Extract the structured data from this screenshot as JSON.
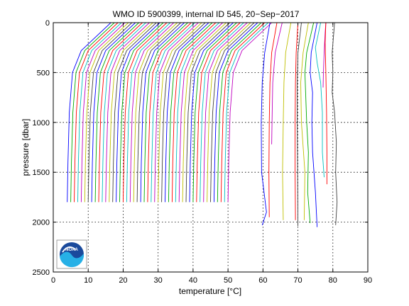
{
  "chart_data": {
    "type": "line",
    "title": "WMO ID 5900399, internal ID 545, 20−Sep−2017",
    "xlabel": "temperature [°C]",
    "ylabel": "pressure [dbar]",
    "xlim": [
      0,
      90
    ],
    "ylim": [
      0,
      2500
    ],
    "y_reversed": true,
    "grid": true,
    "x_ticks": [
      "0",
      "10",
      "20",
      "30",
      "40",
      "50",
      "60",
      "70",
      "80",
      "90"
    ],
    "y_ticks": [
      "0",
      "500",
      "1000",
      "1500",
      "2000",
      "2500"
    ],
    "logo": "NOAA",
    "profile_style": "waterfall, each profile offset +1 °C from previous",
    "profile_colors": [
      "#0000ff",
      "#00aa00",
      "#ff0000",
      "#00bfbf",
      "#bf00bf",
      "#bfbf00",
      "#404040"
    ],
    "series": [
      {
        "color": "#0000ff",
        "x": [
          16.5,
          8.0,
          5.5,
          4.6,
          4.2,
          4.0
        ],
        "y": [
          0,
          280,
          500,
          900,
          1400,
          1800
        ]
      },
      {
        "color": "#00aa00",
        "x": [
          17.5,
          9.0,
          6.5,
          5.6,
          5.2,
          5.0
        ],
        "y": [
          0,
          280,
          500,
          900,
          1400,
          1800
        ]
      },
      {
        "color": "#ff0000",
        "x": [
          18.5,
          10.0,
          7.5,
          6.6,
          6.2,
          6.0
        ],
        "y": [
          0,
          280,
          500,
          900,
          1400,
          1800
        ]
      },
      {
        "color": "#00bfbf",
        "x": [
          19.5,
          11.0,
          8.5,
          7.6,
          7.2,
          7.0
        ],
        "y": [
          0,
          280,
          500,
          900,
          1400,
          1800
        ]
      },
      {
        "color": "#bf00bf",
        "x": [
          20.5,
          12.0,
          9.5,
          8.6,
          8.2,
          8.0
        ],
        "y": [
          0,
          280,
          500,
          900,
          1400,
          1800
        ]
      },
      {
        "color": "#bfbf00",
        "x": [
          21.5,
          13.0,
          10.5,
          9.6,
          9.2,
          9.0
        ],
        "y": [
          0,
          280,
          500,
          900,
          1400,
          1800
        ]
      },
      {
        "color": "#404040",
        "x": [
          22.5,
          14.0,
          11.5,
          10.6,
          10.2,
          10.0
        ],
        "y": [
          0,
          280,
          500,
          900,
          1400,
          1800
        ]
      },
      {
        "color": "#0000ff",
        "x": [
          23.5,
          15.0,
          12.5,
          11.6,
          11.2,
          11.0
        ],
        "y": [
          0,
          280,
          500,
          900,
          1400,
          1800
        ]
      },
      {
        "color": "#00aa00",
        "x": [
          24.5,
          16.0,
          13.5,
          12.6,
          12.2,
          12.0
        ],
        "y": [
          0,
          280,
          500,
          900,
          1400,
          1800
        ]
      },
      {
        "color": "#ff0000",
        "x": [
          25.5,
          17.0,
          14.5,
          13.6,
          13.2,
          13.0
        ],
        "y": [
          0,
          280,
          500,
          900,
          1400,
          1800
        ]
      },
      {
        "color": "#00bfbf",
        "x": [
          26.5,
          18.0,
          15.5,
          14.6,
          14.2,
          14.0
        ],
        "y": [
          0,
          280,
          500,
          900,
          1400,
          1800
        ]
      },
      {
        "color": "#bf00bf",
        "x": [
          27.5,
          19.0,
          16.5,
          15.6,
          15.2,
          15.0
        ],
        "y": [
          0,
          280,
          500,
          900,
          1400,
          1800
        ]
      },
      {
        "color": "#bfbf00",
        "x": [
          28.5,
          20.0,
          17.5,
          16.6,
          16.2,
          16.0
        ],
        "y": [
          0,
          280,
          500,
          900,
          1400,
          1800
        ]
      },
      {
        "color": "#404040",
        "x": [
          29.5,
          21.0,
          18.5,
          17.6,
          17.2,
          17.0
        ],
        "y": [
          0,
          280,
          500,
          900,
          1400,
          1800
        ]
      },
      {
        "color": "#0000ff",
        "x": [
          30.5,
          22.0,
          19.5,
          18.6,
          18.2,
          18.0
        ],
        "y": [
          0,
          280,
          500,
          900,
          1400,
          1800
        ]
      },
      {
        "color": "#00aa00",
        "x": [
          31.5,
          23.0,
          20.5,
          19.6,
          19.2,
          19.0
        ],
        "y": [
          0,
          280,
          500,
          900,
          1400,
          1800
        ]
      },
      {
        "color": "#ff0000",
        "x": [
          32.5,
          24.0,
          21.5,
          20.6,
          20.2,
          20.0
        ],
        "y": [
          0,
          280,
          500,
          900,
          1400,
          1800
        ]
      },
      {
        "color": "#00bfbf",
        "x": [
          33.5,
          25.0,
          22.5,
          21.6,
          21.2,
          21.0
        ],
        "y": [
          0,
          280,
          500,
          900,
          1400,
          1800
        ]
      },
      {
        "color": "#bf00bf",
        "x": [
          34.5,
          26.0,
          23.5,
          22.6,
          22.2,
          22.0
        ],
        "y": [
          0,
          280,
          500,
          900,
          1400,
          1800
        ]
      },
      {
        "color": "#bfbf00",
        "x": [
          35.5,
          27.0,
          24.5,
          23.6,
          23.2,
          23.0
        ],
        "y": [
          0,
          280,
          500,
          900,
          1400,
          1800
        ]
      },
      {
        "color": "#404040",
        "x": [
          36.5,
          28.0,
          25.5,
          24.6,
          24.2,
          24.0
        ],
        "y": [
          0,
          280,
          500,
          900,
          1400,
          1800
        ]
      },
      {
        "color": "#0000ff",
        "x": [
          37.5,
          29.0,
          26.5,
          25.6,
          25.2,
          25.0
        ],
        "y": [
          0,
          280,
          500,
          900,
          1400,
          1800
        ]
      },
      {
        "color": "#00aa00",
        "x": [
          38.5,
          30.0,
          27.5,
          26.6,
          26.2,
          26.0
        ],
        "y": [
          0,
          280,
          500,
          900,
          1400,
          1800
        ]
      },
      {
        "color": "#ff0000",
        "x": [
          39.5,
          31.0,
          28.5,
          27.6,
          27.2,
          27.0
        ],
        "y": [
          0,
          280,
          500,
          900,
          1400,
          1800
        ]
      },
      {
        "color": "#00bfbf",
        "x": [
          40.5,
          32.0,
          29.5,
          28.6,
          28.2,
          28.0
        ],
        "y": [
          0,
          280,
          500,
          900,
          1400,
          1800
        ]
      },
      {
        "color": "#bf00bf",
        "x": [
          41.5,
          33.0,
          30.5,
          29.6,
          29.2,
          29.0
        ],
        "y": [
          0,
          280,
          500,
          900,
          1400,
          1800
        ]
      },
      {
        "color": "#bfbf00",
        "x": [
          42.5,
          34.0,
          31.5,
          30.6,
          30.2,
          30.0
        ],
        "y": [
          0,
          280,
          500,
          900,
          1400,
          1800
        ]
      },
      {
        "color": "#404040",
        "x": [
          43.5,
          35.0,
          32.5,
          31.6,
          31.2,
          31.0
        ],
        "y": [
          0,
          280,
          500,
          900,
          1400,
          1800
        ]
      },
      {
        "color": "#0000ff",
        "x": [
          44.5,
          36.0,
          33.5,
          32.6,
          32.2,
          32.0
        ],
        "y": [
          0,
          280,
          500,
          900,
          1400,
          1800
        ]
      },
      {
        "color": "#00aa00",
        "x": [
          45.5,
          37.0,
          34.5,
          33.6,
          33.2,
          33.0
        ],
        "y": [
          0,
          280,
          500,
          900,
          1400,
          1800
        ]
      },
      {
        "color": "#ff0000",
        "x": [
          46.5,
          38.0,
          35.5,
          34.6,
          34.2,
          34.0
        ],
        "y": [
          0,
          280,
          500,
          900,
          1400,
          1800
        ]
      },
      {
        "color": "#00bfbf",
        "x": [
          47.5,
          39.0,
          36.5,
          35.6,
          35.2,
          35.0
        ],
        "y": [
          0,
          280,
          500,
          900,
          1400,
          1800
        ]
      },
      {
        "color": "#bf00bf",
        "x": [
          48.5,
          40.0,
          37.5,
          36.6,
          36.2,
          36.0
        ],
        "y": [
          0,
          280,
          500,
          900,
          1400,
          1800
        ]
      },
      {
        "color": "#bfbf00",
        "x": [
          49.5,
          41.0,
          38.5,
          37.6,
          37.2,
          37.0
        ],
        "y": [
          0,
          280,
          500,
          900,
          1400,
          1800
        ]
      },
      {
        "color": "#404040",
        "x": [
          50.5,
          42.0,
          39.5,
          38.6,
          38.2,
          38.0
        ],
        "y": [
          0,
          280,
          500,
          900,
          1400,
          1800
        ]
      },
      {
        "color": "#0000ff",
        "x": [
          51.5,
          43.0,
          40.5,
          39.6,
          39.2,
          39.0
        ],
        "y": [
          0,
          280,
          500,
          900,
          1400,
          1800
        ]
      },
      {
        "color": "#00aa00",
        "x": [
          52.5,
          44.0,
          41.5,
          40.6,
          40.2,
          40.0
        ],
        "y": [
          0,
          280,
          500,
          900,
          1400,
          1800
        ]
      },
      {
        "color": "#ff0000",
        "x": [
          53.5,
          45.0,
          42.5,
          41.6,
          41.2,
          41.0
        ],
        "y": [
          0,
          280,
          500,
          900,
          1400,
          1800
        ]
      },
      {
        "color": "#00bfbf",
        "x": [
          54.5,
          46.0,
          43.5,
          42.6,
          42.2,
          42.0
        ],
        "y": [
          0,
          280,
          500,
          900,
          1400,
          1800
        ]
      },
      {
        "color": "#bf00bf",
        "x": [
          55.5,
          47.0,
          44.5,
          43.6,
          43.2,
          43.0
        ],
        "y": [
          0,
          280,
          500,
          900,
          1400,
          1800
        ]
      },
      {
        "color": "#bfbf00",
        "x": [
          56.5,
          48.0,
          45.5,
          44.6,
          44.2,
          44.0
        ],
        "y": [
          0,
          280,
          500,
          900,
          1400,
          1800
        ]
      },
      {
        "color": "#404040",
        "x": [
          57.5,
          49.0,
          46.5,
          45.6,
          45.2,
          45.0
        ],
        "y": [
          0,
          280,
          500,
          900,
          1400,
          1800
        ]
      },
      {
        "color": "#0000ff",
        "x": [
          58.5,
          50.0,
          47.5,
          46.6,
          46.2,
          46.0
        ],
        "y": [
          0,
          280,
          500,
          900,
          1400,
          1800
        ]
      },
      {
        "color": "#00aa00",
        "x": [
          59.5,
          51.0,
          48.5,
          47.6,
          47.2,
          47.0
        ],
        "y": [
          0,
          280,
          500,
          900,
          1400,
          1800
        ]
      },
      {
        "color": "#ff0000",
        "x": [
          60.5,
          52.0,
          49.5,
          48.6,
          48.2,
          48.0
        ],
        "y": [
          0,
          280,
          500,
          900,
          1400,
          1800
        ]
      },
      {
        "color": "#00bfbf",
        "x": [
          61.5,
          53.0,
          50.5,
          49.6,
          49.2,
          49.0
        ],
        "y": [
          0,
          280,
          500,
          900,
          1400,
          1800
        ]
      },
      {
        "color": "#bf00bf",
        "x": [
          62.5,
          54.0,
          51.5,
          50.6,
          50.2,
          50.0
        ],
        "y": [
          0,
          280,
          500,
          900,
          1400,
          1800
        ]
      },
      {
        "color": "#0000ff",
        "x": [
          62.0,
          60.5,
          59.8,
          59.5,
          59.6,
          61.0,
          59.8
        ],
        "y": [
          0,
          300,
          600,
          1000,
          1500,
          1900,
          2030
        ]
      },
      {
        "color": "#ff0000",
        "x": [
          64.0,
          62.5,
          62.0,
          61.8,
          61.7,
          61.8
        ],
        "y": [
          0,
          300,
          600,
          1000,
          1500,
          1950
        ]
      },
      {
        "color": "#bf00bf",
        "x": [
          65.5,
          63.5,
          62.8,
          62.6,
          62.5
        ],
        "y": [
          0,
          300,
          600,
          1000,
          1220
        ]
      },
      {
        "color": "#bfbf00",
        "x": [
          68.0,
          66.5,
          66.0,
          65.8,
          65.6,
          65.8
        ],
        "y": [
          0,
          300,
          600,
          1000,
          1500,
          1980
        ]
      },
      {
        "color": "#ff0000",
        "x": [
          70.0,
          69.5,
          69.3,
          69.2,
          69.2,
          69.3
        ],
        "y": [
          0,
          300,
          600,
          1000,
          1500,
          1980
        ]
      },
      {
        "color": "#404040",
        "x": [
          71.0,
          70.0,
          69.8,
          69.8,
          69.9,
          70.0
        ],
        "y": [
          0,
          300,
          600,
          1000,
          1500,
          2040
        ]
      },
      {
        "color": "#bfbf00",
        "x": [
          73.0,
          71.5,
          70.8,
          71.0,
          72.0,
          71.8
        ],
        "y": [
          0,
          300,
          600,
          1000,
          1500,
          1980
        ]
      },
      {
        "color": "#00aa00",
        "x": [
          74.5,
          72.5,
          72.0,
          72.2,
          72.5,
          73.0,
          72.8,
          73.5
        ],
        "y": [
          0,
          300,
          500,
          700,
          1000,
          1300,
          1700,
          2010
        ]
      },
      {
        "color": "#0000ff",
        "x": [
          75.5,
          73.8,
          73.5,
          74.2,
          74.0,
          74.2,
          75.0,
          75.5
        ],
        "y": [
          0,
          300,
          500,
          700,
          1000,
          1300,
          1700,
          2050
        ]
      },
      {
        "color": "#00bfbf",
        "x": [
          76.5,
          75.0,
          75.5,
          76.5,
          77.0,
          77.0,
          77.5
        ],
        "y": [
          0,
          250,
          400,
          600,
          900,
          1300,
          1550
        ]
      },
      {
        "color": "#bf00bf",
        "x": [
          78.0,
          77.8,
          77.5,
          77.3,
          77.2
        ],
        "y": [
          0,
          100,
          300,
          500,
          650
        ]
      },
      {
        "color": "#ff0000",
        "x": [
          78.0,
          77.8,
          78.0,
          78.2,
          78.3,
          78.3
        ],
        "y": [
          0,
          200,
          500,
          900,
          1300,
          1620
        ]
      },
      {
        "color": "#404040",
        "x": [
          80.5,
          79.8,
          80.0,
          79.8,
          80.5,
          81.0,
          80.8,
          81.2,
          80.8
        ],
        "y": [
          0,
          300,
          500,
          700,
          900,
          1200,
          1500,
          1800,
          2030
        ]
      }
    ]
  }
}
